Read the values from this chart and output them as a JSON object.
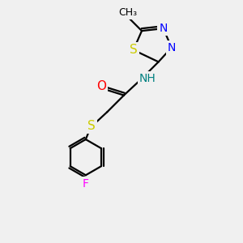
{
  "background_color": "#f0f0f0",
  "bond_color": "black",
  "bond_width": 1.6,
  "atom_colors": {
    "C": "black",
    "H": "#008080",
    "N": "blue",
    "O": "red",
    "S": "#cccc00",
    "F": "magenta"
  },
  "font_size": 10,
  "fig_size": [
    3.0,
    3.0
  ],
  "dpi": 100,
  "xlim": [
    0,
    10
  ],
  "ylim": [
    0,
    10
  ]
}
